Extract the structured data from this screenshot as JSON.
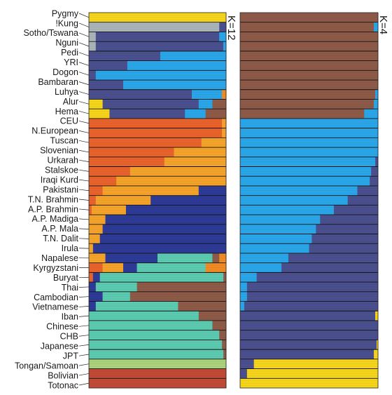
{
  "chart_data": {
    "type": "stacked-bar",
    "orientation": "horizontal",
    "panels": [
      {
        "k_label": "K=12",
        "components": [
          "#f5d41c",
          "#a9b4b8",
          "#4a4f8e",
          "#2aa6e8",
          "#e8622c",
          "#f4a32a",
          "#2d3a96",
          "#5ccab0",
          "#8e5a48",
          "#a9d27a",
          "#c04a36",
          "#f08a24"
        ],
        "rows": [
          {
            "label": "Pygmy",
            "frac": [
              1,
              0,
              0,
              0,
              0,
              0,
              0,
              0,
              0,
              0,
              0,
              0
            ]
          },
          {
            "label": "!Kung",
            "frac": [
              0,
              0.95,
              0.05,
              0,
              0,
              0,
              0,
              0,
              0,
              0,
              0,
              0
            ]
          },
          {
            "label": "Sotho/Tswana",
            "frac": [
              0,
              0.05,
              0.9,
              0.05,
              0,
              0,
              0,
              0,
              0,
              0,
              0,
              0
            ]
          },
          {
            "label": "Nguni",
            "frac": [
              0,
              0.05,
              0.93,
              0.02,
              0,
              0,
              0,
              0,
              0,
              0,
              0,
              0
            ]
          },
          {
            "label": "Pedi",
            "frac": [
              0,
              0,
              0.52,
              0.48,
              0,
              0,
              0,
              0,
              0,
              0,
              0,
              0
            ]
          },
          {
            "label": "YRI",
            "frac": [
              0,
              0,
              0.28,
              0.72,
              0,
              0,
              0,
              0,
              0,
              0,
              0,
              0
            ]
          },
          {
            "label": "Dogon",
            "frac": [
              0,
              0,
              0.05,
              0.95,
              0,
              0,
              0,
              0,
              0,
              0,
              0,
              0
            ]
          },
          {
            "label": "Bambaran",
            "frac": [
              0,
              0,
              0.25,
              0.75,
              0,
              0,
              0,
              0,
              0,
              0,
              0,
              0
            ]
          },
          {
            "label": "Luhya",
            "frac": [
              0,
              0,
              0.75,
              0.22,
              0,
              0,
              0,
              0,
              0,
              0,
              0,
              0.03
            ]
          },
          {
            "label": "Alur",
            "frac": [
              0.1,
              0,
              0.7,
              0.1,
              0,
              0,
              0,
              0,
              0.1,
              0,
              0,
              0
            ]
          },
          {
            "label": "Hema",
            "frac": [
              0.15,
              0,
              0.55,
              0.15,
              0,
              0,
              0,
              0,
              0.15,
              0,
              0,
              0
            ]
          },
          {
            "label": "CEU",
            "frac": [
              0,
              0,
              0,
              0,
              0.97,
              0.03,
              0,
              0,
              0,
              0,
              0,
              0
            ]
          },
          {
            "label": "N.European",
            "frac": [
              0,
              0,
              0,
              0,
              0.97,
              0.03,
              0,
              0,
              0,
              0,
              0,
              0
            ]
          },
          {
            "label": "Tuscan",
            "frac": [
              0,
              0,
              0,
              0,
              0.82,
              0.18,
              0,
              0,
              0,
              0,
              0,
              0
            ]
          },
          {
            "label": "Slovenian",
            "frac": [
              0,
              0,
              0,
              0,
              0.62,
              0.38,
              0,
              0,
              0,
              0,
              0,
              0
            ]
          },
          {
            "label": "Urkarah",
            "frac": [
              0,
              0,
              0,
              0,
              0.55,
              0.45,
              0,
              0,
              0,
              0,
              0,
              0
            ]
          },
          {
            "label": "Stalskoe",
            "frac": [
              0,
              0,
              0,
              0,
              0.3,
              0.7,
              0,
              0,
              0,
              0,
              0,
              0
            ]
          },
          {
            "label": "Iraqi Kurd",
            "frac": [
              0,
              0,
              0,
              0,
              0.2,
              0.8,
              0,
              0,
              0,
              0,
              0,
              0
            ]
          },
          {
            "label": "Pakistani",
            "frac": [
              0,
              0,
              0,
              0,
              0.1,
              0.7,
              0.2,
              0,
              0,
              0,
              0,
              0
            ]
          },
          {
            "label": "T.N. Brahmin",
            "frac": [
              0,
              0,
              0,
              0,
              0.05,
              0.4,
              0.55,
              0,
              0,
              0,
              0,
              0
            ]
          },
          {
            "label": "A.P. Brahmin",
            "frac": [
              0,
              0,
              0,
              0,
              0.02,
              0.25,
              0.73,
              0,
              0,
              0,
              0,
              0
            ]
          },
          {
            "label": "A.P. Madiga",
            "frac": [
              0,
              0,
              0,
              0,
              0,
              0.12,
              0.88,
              0,
              0,
              0,
              0,
              0
            ]
          },
          {
            "label": "A.P. Mala",
            "frac": [
              0,
              0,
              0,
              0,
              0,
              0.1,
              0.9,
              0,
              0,
              0,
              0,
              0
            ]
          },
          {
            "label": "T.N. Dalit",
            "frac": [
              0,
              0,
              0,
              0,
              0,
              0.08,
              0.92,
              0,
              0,
              0,
              0,
              0
            ]
          },
          {
            "label": "Irula",
            "frac": [
              0,
              0,
              0,
              0,
              0,
              0.03,
              0.97,
              0,
              0,
              0,
              0,
              0
            ]
          },
          {
            "label": "Napalese",
            "frac": [
              0,
              0,
              0,
              0,
              0,
              0.12,
              0.38,
              0.4,
              0.05,
              0,
              0,
              0.05
            ]
          },
          {
            "label": "Kyrgyzstani",
            "frac": [
              0,
              0,
              0,
              0,
              0.1,
              0.15,
              0.1,
              0.5,
              0,
              0,
              0,
              0.15
            ]
          },
          {
            "label": "Buryat",
            "frac": [
              0,
              0,
              0,
              0,
              0.03,
              0,
              0.05,
              0.9,
              0.02,
              0,
              0,
              0
            ]
          },
          {
            "label": "Thai",
            "frac": [
              0,
              0,
              0,
              0,
              0,
              0,
              0.05,
              0.3,
              0.65,
              0,
              0,
              0
            ]
          },
          {
            "label": "Cambodian",
            "frac": [
              0,
              0,
              0,
              0,
              0,
              0,
              0.1,
              0.2,
              0.7,
              0,
              0,
              0
            ]
          },
          {
            "label": "Vietnamese",
            "frac": [
              0,
              0,
              0,
              0,
              0,
              0,
              0.05,
              0.6,
              0.35,
              0,
              0,
              0
            ]
          },
          {
            "label": "Iban",
            "frac": [
              0,
              0,
              0,
              0,
              0,
              0,
              0,
              0.8,
              0.2,
              0,
              0,
              0
            ]
          },
          {
            "label": "Chinese",
            "frac": [
              0,
              0,
              0,
              0,
              0,
              0,
              0,
              0.9,
              0.1,
              0,
              0,
              0
            ]
          },
          {
            "label": "CHB",
            "frac": [
              0,
              0,
              0,
              0,
              0,
              0,
              0,
              0.95,
              0.05,
              0,
              0,
              0
            ]
          },
          {
            "label": "Japanese",
            "frac": [
              0,
              0,
              0,
              0,
              0,
              0,
              0,
              0.97,
              0.03,
              0,
              0,
              0
            ]
          },
          {
            "label": "JPT",
            "frac": [
              0,
              0,
              0,
              0,
              0,
              0,
              0,
              0.98,
              0.02,
              0,
              0,
              0
            ]
          },
          {
            "label": "Tongan/Samoan",
            "frac": [
              0,
              0,
              0,
              0,
              0,
              0,
              0,
              0,
              0,
              1,
              0,
              0
            ]
          },
          {
            "label": "Bolivian",
            "frac": [
              0,
              0,
              0,
              0,
              0,
              0,
              0,
              0,
              0,
              0,
              1,
              0
            ]
          },
          {
            "label": "Totonac",
            "frac": [
              0,
              0,
              0,
              0,
              0,
              0,
              0,
              0,
              0,
              0,
              1,
              0
            ]
          }
        ]
      },
      {
        "k_label": "K=4",
        "components": [
          "#8e5a48",
          "#2aa6e8",
          "#4a4f8e",
          "#f5d41c"
        ],
        "rows": [
          {
            "label": "Pygmy",
            "frac": [
              1,
              0,
              0,
              0
            ]
          },
          {
            "label": "!Kung",
            "frac": [
              0.97,
              0.03,
              0,
              0
            ]
          },
          {
            "label": "Sotho/Tswana",
            "frac": [
              1,
              0,
              0,
              0
            ]
          },
          {
            "label": "Nguni",
            "frac": [
              1,
              0,
              0,
              0
            ]
          },
          {
            "label": "Pedi",
            "frac": [
              1,
              0,
              0,
              0
            ]
          },
          {
            "label": "YRI",
            "frac": [
              1,
              0,
              0,
              0
            ]
          },
          {
            "label": "Dogon",
            "frac": [
              1,
              0,
              0,
              0
            ]
          },
          {
            "label": "Bambaran",
            "frac": [
              1,
              0,
              0,
              0
            ]
          },
          {
            "label": "Luhya",
            "frac": [
              0.98,
              0.02,
              0,
              0
            ]
          },
          {
            "label": "Alur",
            "frac": [
              0.97,
              0.03,
              0,
              0
            ]
          },
          {
            "label": "Hema",
            "frac": [
              0.9,
              0.1,
              0,
              0
            ]
          },
          {
            "label": "CEU",
            "frac": [
              0,
              1,
              0,
              0
            ]
          },
          {
            "label": "N.European",
            "frac": [
              0,
              1,
              0,
              0
            ]
          },
          {
            "label": "Tuscan",
            "frac": [
              0,
              1,
              0,
              0
            ]
          },
          {
            "label": "Slovenian",
            "frac": [
              0,
              1,
              0,
              0
            ]
          },
          {
            "label": "Urkarah",
            "frac": [
              0,
              0.98,
              0.02,
              0
            ]
          },
          {
            "label": "Stalskoe",
            "frac": [
              0,
              0.95,
              0.05,
              0
            ]
          },
          {
            "label": "Iraqi Kurd",
            "frac": [
              0,
              0.94,
              0.06,
              0
            ]
          },
          {
            "label": "Pakistani",
            "frac": [
              0,
              0.85,
              0.15,
              0
            ]
          },
          {
            "label": "T.N. Brahmin",
            "frac": [
              0,
              0.78,
              0.22,
              0
            ]
          },
          {
            "label": "A.P. Brahmin",
            "frac": [
              0,
              0.68,
              0.32,
              0
            ]
          },
          {
            "label": "A.P. Madiga",
            "frac": [
              0,
              0.58,
              0.42,
              0
            ]
          },
          {
            "label": "A.P. Mala",
            "frac": [
              0,
              0.55,
              0.45,
              0
            ]
          },
          {
            "label": "T.N. Dalit",
            "frac": [
              0,
              0.52,
              0.48,
              0
            ]
          },
          {
            "label": "Irula",
            "frac": [
              0,
              0.5,
              0.5,
              0
            ]
          },
          {
            "label": "Napalese",
            "frac": [
              0,
              0.35,
              0.65,
              0
            ]
          },
          {
            "label": "Kyrgyzstani",
            "frac": [
              0,
              0.3,
              0.7,
              0
            ]
          },
          {
            "label": "Buryat",
            "frac": [
              0,
              0.12,
              0.88,
              0
            ]
          },
          {
            "label": "Thai",
            "frac": [
              0,
              0.05,
              0.95,
              0
            ]
          },
          {
            "label": "Cambodian",
            "frac": [
              0,
              0.05,
              0.95,
              0
            ]
          },
          {
            "label": "Vietnamese",
            "frac": [
              0,
              0.03,
              0.97,
              0
            ]
          },
          {
            "label": "Iban",
            "frac": [
              0,
              0,
              0.98,
              0.02
            ]
          },
          {
            "label": "Chinese",
            "frac": [
              0,
              0,
              1,
              0
            ]
          },
          {
            "label": "CHB",
            "frac": [
              0,
              0,
              1,
              0
            ]
          },
          {
            "label": "Japanese",
            "frac": [
              0,
              0,
              0.99,
              0.01
            ]
          },
          {
            "label": "JPT",
            "frac": [
              0,
              0,
              0.97,
              0.03
            ]
          },
          {
            "label": "Tongan/Samoan",
            "frac": [
              0,
              0,
              0.1,
              0.9
            ]
          },
          {
            "label": "Bolivian",
            "frac": [
              0,
              0,
              0.05,
              0.95
            ]
          },
          {
            "label": "Totonac",
            "frac": [
              0,
              0,
              0,
              1
            ]
          }
        ]
      }
    ]
  }
}
